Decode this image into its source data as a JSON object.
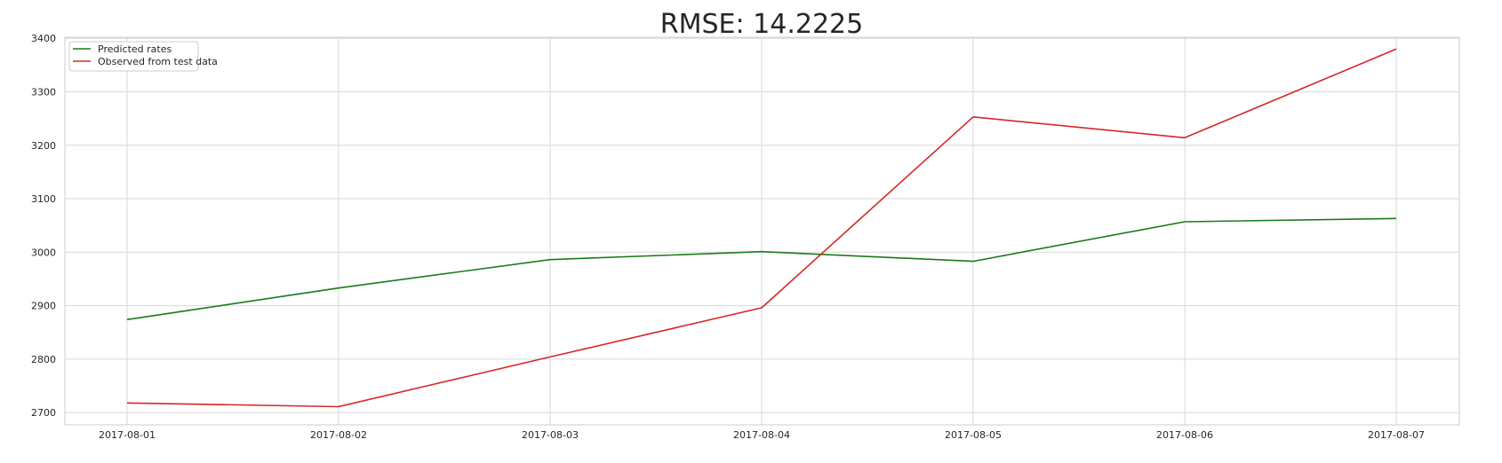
{
  "chart_data": {
    "type": "line",
    "title": "RMSE: 14.2225",
    "xlabel": "",
    "ylabel": "",
    "x": [
      "2017-08-01",
      "2017-08-02",
      "2017-08-03",
      "2017-08-04",
      "2017-08-05",
      "2017-08-06",
      "2017-08-07"
    ],
    "ylim": [
      2677,
      3402
    ],
    "yticks": [
      2700,
      2800,
      2900,
      3000,
      3100,
      3200,
      3300,
      3400
    ],
    "grid": true,
    "legend_position": "top-left",
    "series": [
      {
        "name": "Predicted rates",
        "color": "#1a7a1a",
        "values": [
          2874,
          2933,
          2986,
          3001,
          2983,
          3057,
          3063
        ]
      },
      {
        "name": "Observed from test data",
        "color": "#d62728",
        "values": [
          2718,
          2711,
          2804,
          2896,
          3253,
          3214,
          3380
        ]
      }
    ]
  }
}
